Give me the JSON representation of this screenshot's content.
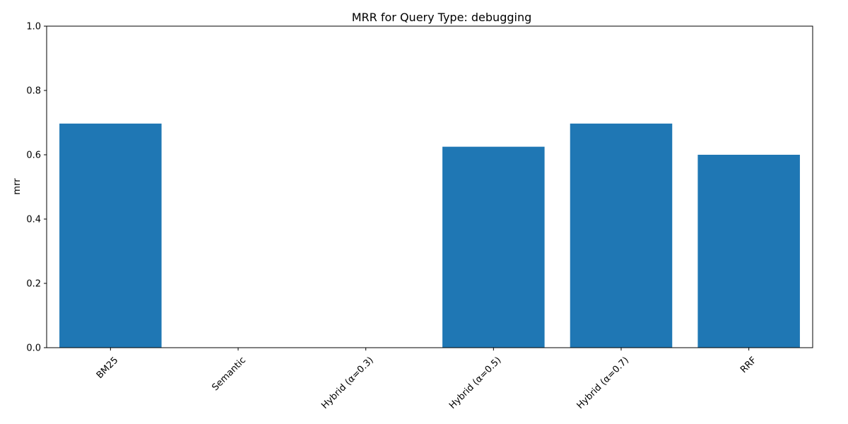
{
  "chart_data": {
    "type": "bar",
    "title": "MRR for Query Type: debugging",
    "xlabel": "",
    "ylabel": "mrr",
    "categories": [
      "BM25",
      "Semantic",
      "Hybrid (α=0.3)",
      "Hybrid (α=0.5)",
      "Hybrid (α=0.7)",
      "RRF"
    ],
    "values": [
      0.697,
      0.0,
      0.0,
      0.625,
      0.697,
      0.6
    ],
    "ylim": [
      0,
      1.0
    ],
    "yticks": [
      "0.0",
      "0.2",
      "0.4",
      "0.6",
      "0.8",
      "1.0"
    ],
    "ytick_values": [
      0,
      0.2,
      0.4,
      0.6,
      0.8,
      1.0
    ],
    "bar_color": "#1f77b4",
    "grid": false,
    "xtick_rotation_deg": 45
  }
}
